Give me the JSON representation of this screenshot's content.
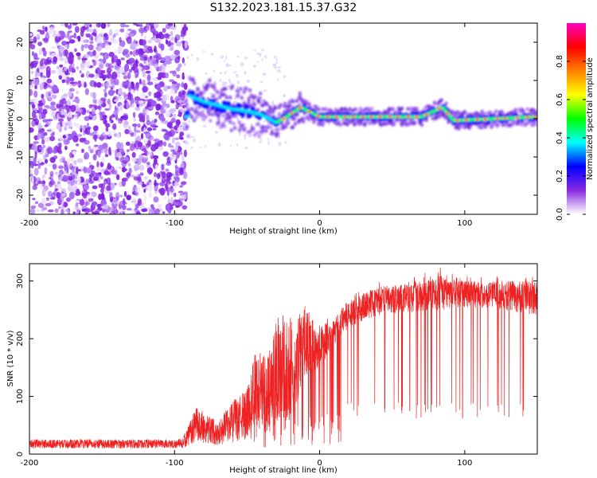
{
  "title": "S132.2023.181.15.37.G32",
  "chart_data": [
    {
      "type": "heatmap",
      "xlabel": "Height of straight line (km)",
      "ylabel": "Frequency (Hz)",
      "xlim": [
        -200,
        150
      ],
      "ylim": [
        -25,
        25
      ],
      "xticks": [
        -200,
        -100,
        0,
        100
      ],
      "yticks": [
        -20,
        -10,
        0,
        10,
        20
      ],
      "colorbar": {
        "label": "Normalized spectral amplitude",
        "range": [
          0,
          1
        ],
        "ticks": [
          0.0,
          0.2,
          0.4,
          0.6,
          0.8
        ],
        "colormap": [
          "#ffffff",
          "#8a2be2",
          "#0000ff",
          "#00ffff",
          "#00ff00",
          "#ffff00",
          "#ff8000",
          "#ff0000",
          "#ff00c0"
        ]
      },
      "features": {
        "noise_region_x": [
          -200,
          -92
        ],
        "signal_onset_x": -92,
        "signal_track_hz": [
          [
            -90,
            6
          ],
          [
            -80,
            4.5
          ],
          [
            -70,
            3.5
          ],
          [
            -60,
            2.5
          ],
          [
            -50,
            2
          ],
          [
            -40,
            1
          ],
          [
            -30,
            -1
          ],
          [
            -25,
            0
          ],
          [
            -13,
            3
          ],
          [
            0,
            0.5
          ],
          [
            20,
            0.5
          ],
          [
            50,
            0.5
          ],
          [
            70,
            0.5
          ],
          [
            85,
            3
          ],
          [
            92,
            -0.5
          ],
          [
            150,
            0.5
          ]
        ]
      }
    },
    {
      "type": "line",
      "xlabel": "Height of straight line (km)",
      "ylabel": "SNR (10 * v/v)",
      "xlim": [
        -200,
        150
      ],
      "ylim": [
        0,
        330
      ],
      "xticks": [
        -200,
        -100,
        0,
        100
      ],
      "yticks": [
        0,
        100,
        200,
        300
      ],
      "series": [
        {
          "color": "#ee2222",
          "envelope": [
            {
              "x": -200,
              "base": 10,
              "peak": 25
            },
            {
              "x": -95,
              "base": 10,
              "peak": 25
            },
            {
              "x": -90,
              "base": 15,
              "peak": 50
            },
            {
              "x": -85,
              "base": 20,
              "peak": 80
            },
            {
              "x": -70,
              "base": 15,
              "peak": 55
            },
            {
              "x": -60,
              "base": 20,
              "peak": 90
            },
            {
              "x": -50,
              "base": 25,
              "peak": 110
            },
            {
              "x": -45,
              "base": 40,
              "peak": 170
            },
            {
              "x": -35,
              "base": 40,
              "peak": 170
            },
            {
              "x": -30,
              "base": 50,
              "peak": 230
            },
            {
              "x": -20,
              "base": 60,
              "peak": 240
            },
            {
              "x": -10,
              "base": 130,
              "peak": 250
            },
            {
              "x": 0,
              "base": 150,
              "peak": 220
            },
            {
              "x": 10,
              "base": 190,
              "peak": 240
            },
            {
              "x": 20,
              "base": 220,
              "peak": 265
            },
            {
              "x": 40,
              "base": 240,
              "peak": 290
            },
            {
              "x": 60,
              "base": 245,
              "peak": 295
            },
            {
              "x": 85,
              "base": 250,
              "peak": 315
            },
            {
              "x": 100,
              "base": 255,
              "peak": 300
            },
            {
              "x": 125,
              "base": 250,
              "peak": 300
            },
            {
              "x": 150,
              "base": 240,
              "peak": 300
            }
          ],
          "dropout_region_x": [
            15,
            145
          ],
          "dropout_level": 60
        }
      ]
    }
  ]
}
